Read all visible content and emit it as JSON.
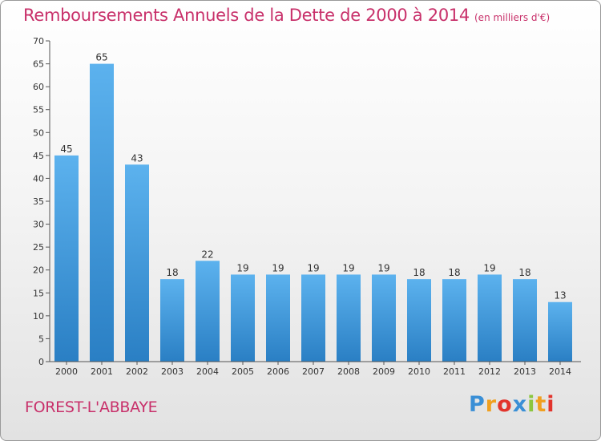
{
  "title": "Remboursements Annuels de la Dette de 2000 à 2014",
  "unit": "(en milliers d'€)",
  "commune": "FOREST-L'ABBAYE",
  "logo": {
    "letters": [
      "P",
      "r",
      "o",
      "x",
      "i",
      "t",
      "i"
    ],
    "colors": [
      "#3a8fd6",
      "#f0a020",
      "#e2342c",
      "#3a8fd6",
      "#8cc63e",
      "#f0a020",
      "#e2342c"
    ]
  },
  "colors": {
    "bar_top": "#5cb2ee",
    "bar_bottom": "#2a7fc4",
    "title": "#c8306a"
  },
  "chart_data": {
    "type": "bar",
    "categories": [
      "2000",
      "2001",
      "2002",
      "2003",
      "2004",
      "2005",
      "2006",
      "2007",
      "2008",
      "2009",
      "2010",
      "2011",
      "2012",
      "2013",
      "2014"
    ],
    "values": [
      45,
      65,
      43,
      18,
      22,
      19,
      19,
      19,
      19,
      19,
      18,
      18,
      19,
      18,
      13
    ],
    "ylim": [
      0,
      70
    ],
    "yticks": [
      0,
      5,
      10,
      15,
      20,
      25,
      30,
      35,
      40,
      45,
      50,
      55,
      60,
      65,
      70
    ],
    "grid": false,
    "data_labels": true
  }
}
